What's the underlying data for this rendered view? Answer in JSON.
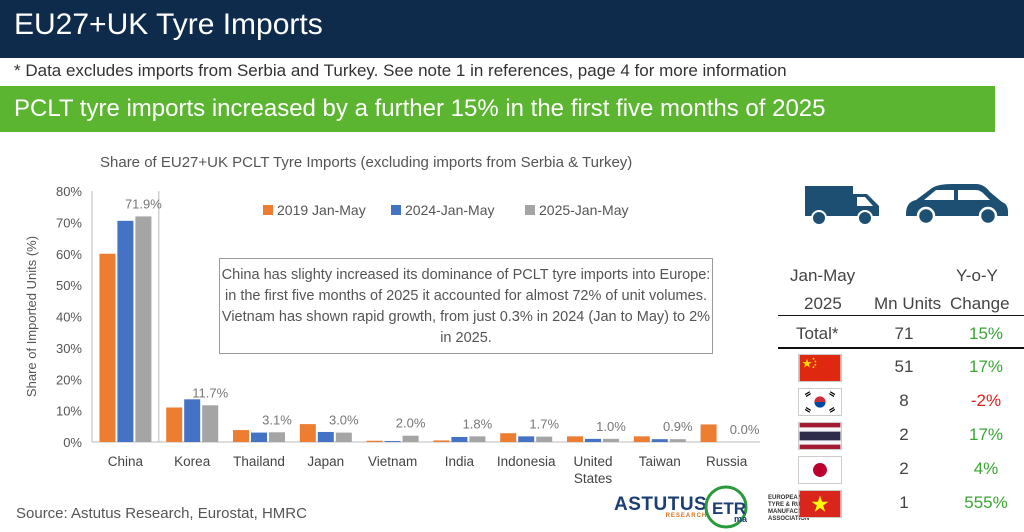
{
  "header": {
    "title": "EU27+UK Tyre Imports",
    "note": "* Data excludes imports from Serbia and Turkey. See note 1 in references, page 4 for more information",
    "banner": "PCLT tyre imports increased by a further 15% in the first five months of 2025"
  },
  "colors": {
    "s2019": "#ed7d31",
    "s2024": "#4472c4",
    "s2025": "#a5a5a5",
    "navy": "#0f2b4c",
    "green": "#5cb531"
  },
  "chart_data": {
    "type": "bar",
    "title": "Share of EU27+UK PCLT Tyre Imports (excluding imports from Serbia & Turkey)",
    "ylabel": "Share of Imported Units (%)",
    "ylim": [
      0,
      80
    ],
    "yticks": [
      "0%",
      "10%",
      "20%",
      "30%",
      "40%",
      "50%",
      "60%",
      "70%",
      "80%"
    ],
    "legend_position": "top",
    "categories": [
      "China",
      "Korea",
      "Thailand",
      "Japan",
      "Vietnam",
      "India",
      "Indonesia",
      "United States",
      "Taiwan",
      "Russia"
    ],
    "series": [
      {
        "name": "2019 Jan-May",
        "values": [
          60,
          11,
          3.8,
          5.7,
          0.4,
          0.5,
          2.8,
          1.8,
          1.8,
          5.6
        ]
      },
      {
        "name": "2024-Jan-May",
        "values": [
          70.5,
          13.6,
          3.0,
          3.2,
          0.3,
          1.6,
          1.8,
          1.0,
          0.9,
          0.0
        ]
      },
      {
        "name": "2025-Jan-May",
        "values": [
          71.9,
          11.7,
          3.1,
          3.0,
          2.0,
          1.8,
          1.7,
          1.0,
          0.9,
          0.0
        ]
      }
    ],
    "data_labels": [
      "71.9%",
      "11.7%",
      "3.1%",
      "3.0%",
      "2.0%",
      "1.8%",
      "1.7%",
      "1.0%",
      "0.9%",
      "0.0%"
    ],
    "annotation": "China has slighty increased its dominance of PCLT tyre imports into Europe: in the first five months of 2025 it accounted for almost 72% of unit volumes. Vietnam has shown rapid growth, from just 0.3% in 2024 (Jan to May)  to 2% in 2025."
  },
  "source": "Source: Astutus Research, Eurostat, HMRC",
  "logos": {
    "astutus": "ASTUTUS",
    "astutus_sub": "RESEARCH",
    "etrma": "ETRma",
    "etrma_text": "EUROPEAN TYRE & RUBBER MANUFACTURERS' ASSOCIATION"
  },
  "table": {
    "header_line1_left": "Jan-May",
    "header_line1_right": "Y-o-Y",
    "header_line2_left": "2025",
    "header_line2_mid": "Mn Units",
    "header_line2_right": "Change",
    "total_label": "Total*",
    "total_units": "71",
    "total_change": "15%",
    "rows": [
      {
        "country_icon": "china-flag-icon",
        "units": "51",
        "change": "17%"
      },
      {
        "country_icon": "korea-flag-icon",
        "units": "8",
        "change": "-2%"
      },
      {
        "country_icon": "thailand-flag-icon",
        "units": "2",
        "change": "17%"
      },
      {
        "country_icon": "japan-flag-icon",
        "units": "2",
        "change": "4%"
      },
      {
        "country_icon": "vietnam-flag-icon",
        "units": "1",
        "change": "555%"
      }
    ]
  }
}
